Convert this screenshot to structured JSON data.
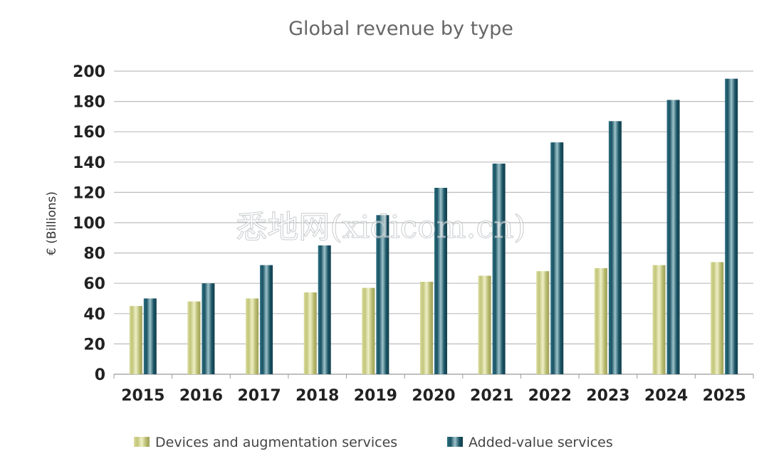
{
  "watermark": "悉地网(xidicom.cn)",
  "chart_data": {
    "type": "bar",
    "title": "Global revenue by type",
    "xlabel": "",
    "ylabel": "€ (Billions)",
    "ylim": [
      0,
      200
    ],
    "yticks": [
      0,
      20,
      40,
      60,
      80,
      100,
      120,
      140,
      160,
      180,
      200
    ],
    "grid": true,
    "legend_position": "bottom",
    "categories": [
      "2015",
      "2016",
      "2017",
      "2018",
      "2019",
      "2020",
      "2021",
      "2022",
      "2023",
      "2024",
      "2025"
    ],
    "series": [
      {
        "name": "Devices and augmentation services",
        "color": "#c2c57a",
        "values": [
          45,
          48,
          50,
          54,
          57,
          61,
          65,
          68,
          70,
          72,
          74
        ]
      },
      {
        "name": "Added-value services",
        "color": "#1e5a6b",
        "values": [
          50,
          60,
          72,
          85,
          105,
          123,
          139,
          153,
          167,
          181,
          195
        ]
      }
    ]
  }
}
